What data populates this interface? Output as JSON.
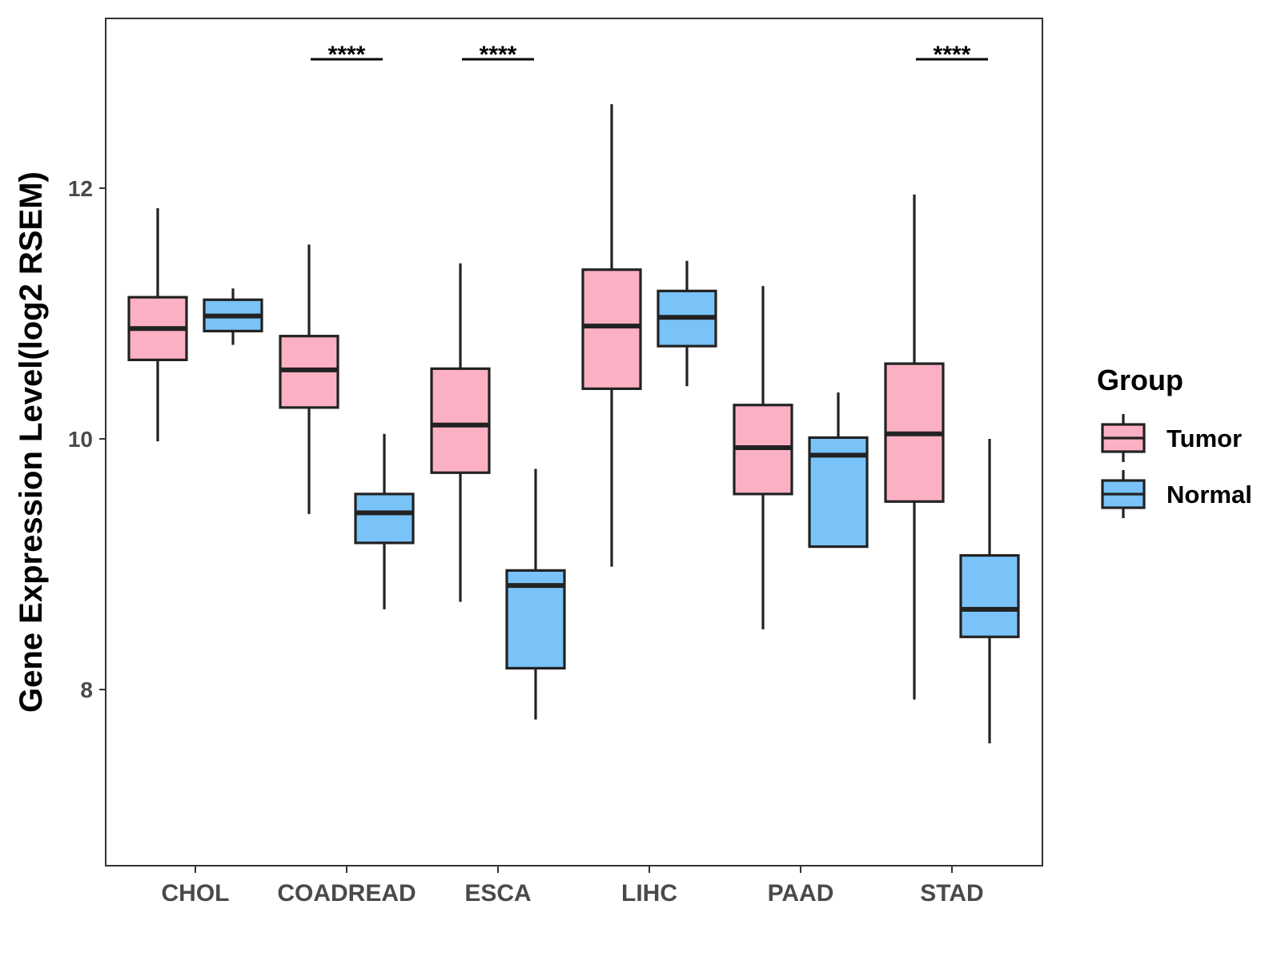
{
  "chart_data": {
    "type": "boxplot",
    "ylabel": "Gene Expression Level(log2 RSEM)",
    "xlabel": "",
    "ylim": [
      6.6,
      13.4
    ],
    "yticks": [
      8,
      10,
      12
    ],
    "categories": [
      "CHOL",
      "COADREAD",
      "ESCA",
      "LIHC",
      "PAAD",
      "STAD"
    ],
    "legend": {
      "title": "Group",
      "position": "right",
      "entries": [
        {
          "name": "Tumor",
          "color": "#fbb1c3"
        },
        {
          "name": "Normal",
          "color": "#79c3f8"
        }
      ]
    },
    "series": [
      {
        "name": "Tumor",
        "color": "#fbb1c3",
        "boxes": [
          {
            "min": 9.98,
            "q1": 10.63,
            "median": 10.88,
            "q3": 11.13,
            "max": 11.84
          },
          {
            "min": 9.4,
            "q1": 10.25,
            "median": 10.55,
            "q3": 10.82,
            "max": 11.55
          },
          {
            "min": 8.7,
            "q1": 9.73,
            "median": 10.11,
            "q3": 10.56,
            "max": 11.4
          },
          {
            "min": 8.98,
            "q1": 10.4,
            "median": 10.9,
            "q3": 11.35,
            "max": 12.67
          },
          {
            "min": 8.48,
            "q1": 9.56,
            "median": 9.93,
            "q3": 10.27,
            "max": 11.22
          },
          {
            "min": 7.92,
            "q1": 9.5,
            "median": 10.04,
            "q3": 10.6,
            "max": 11.95
          }
        ]
      },
      {
        "name": "Normal",
        "color": "#79c3f8",
        "boxes": [
          {
            "min": 10.75,
            "q1": 10.86,
            "median": 10.98,
            "q3": 11.11,
            "max": 11.2
          },
          {
            "min": 8.64,
            "q1": 9.17,
            "median": 9.41,
            "q3": 9.56,
            "max": 10.04
          },
          {
            "min": 7.76,
            "q1": 8.17,
            "median": 8.83,
            "q3": 8.95,
            "max": 9.76
          },
          {
            "min": 10.42,
            "q1": 10.74,
            "median": 10.97,
            "q3": 11.18,
            "max": 11.42
          },
          {
            "min": 9.14,
            "q1": 9.14,
            "median": 9.87,
            "q3": 10.01,
            "max": 10.37
          },
          {
            "min": 7.57,
            "q1": 8.42,
            "median": 8.64,
            "q3": 9.07,
            "max": 10.0
          }
        ]
      }
    ],
    "significance": [
      {
        "category": "COADREAD",
        "label": "****"
      },
      {
        "category": "ESCA",
        "label": "****"
      },
      {
        "category": "STAD",
        "label": "****"
      }
    ]
  }
}
